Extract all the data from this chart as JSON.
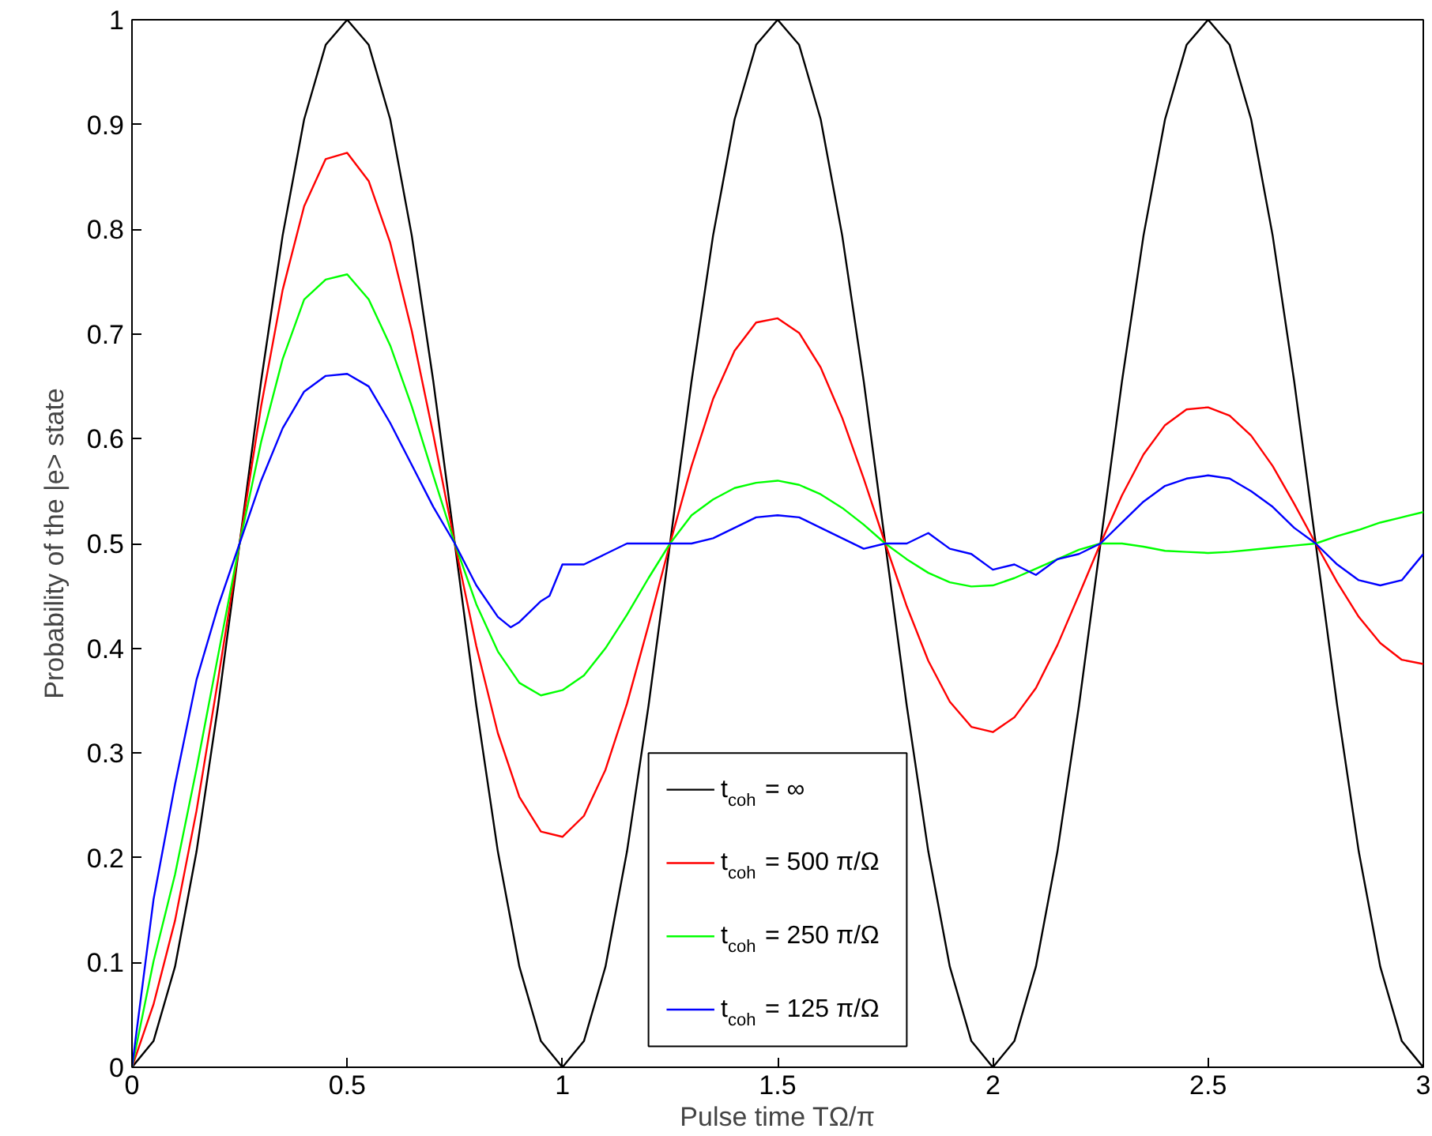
{
  "chart_data": {
    "type": "line",
    "xlabel": "Pulse time TΩ/π",
    "ylabel": "Probability of the |e> state",
    "xlim": [
      0,
      3
    ],
    "ylim": [
      0,
      1
    ],
    "xticks": [
      0,
      0.5,
      1,
      1.5,
      2,
      2.5,
      3
    ],
    "yticks": [
      0,
      0.1,
      0.2,
      0.3,
      0.4,
      0.5,
      0.6,
      0.7,
      0.8,
      0.9,
      1
    ],
    "grid": false,
    "legend": "bottom",
    "marker": "none",
    "line_style": "solid",
    "x": [
      0,
      0.05,
      0.1,
      0.15,
      0.2,
      0.25,
      0.3,
      0.35,
      0.4,
      0.45,
      0.5,
      0.55,
      0.6,
      0.65,
      0.7,
      0.75,
      0.8,
      0.85,
      0.9,
      0.95,
      1,
      1.05,
      1.1,
      1.15,
      1.2,
      1.25,
      1.3,
      1.35,
      1.4,
      1.45,
      1.5,
      1.55,
      1.6,
      1.65,
      1.7,
      1.75,
      1.8,
      1.85,
      1.9,
      1.95,
      2,
      2.05,
      2.1,
      2.15,
      2.2,
      2.25,
      2.3,
      2.35,
      2.4,
      2.45,
      2.5,
      2.55,
      2.6,
      2.65,
      2.7,
      2.75,
      2.8,
      2.85,
      2.9,
      2.95,
      3
    ],
    "series": [
      {
        "name": "t$_{coh}$ = ∞",
        "color": "#000000",
        "values": [
          0,
          0.025,
          0.096,
          0.206,
          0.345,
          0.5,
          0.655,
          0.794,
          0.905,
          0.976,
          1,
          0.976,
          0.905,
          0.794,
          0.655,
          0.5,
          0.345,
          0.206,
          0.096,
          0.025,
          0,
          0.025,
          0.096,
          0.206,
          0.345,
          0.5,
          0.655,
          0.794,
          0.905,
          0.976,
          1,
          0.976,
          0.905,
          0.794,
          0.655,
          0.5,
          0.345,
          0.206,
          0.096,
          0.025,
          0,
          0.025,
          0.096,
          0.206,
          0.345,
          0.5,
          0.655,
          0.794,
          0.905,
          0.976,
          1,
          0.976,
          0.905,
          0.794,
          0.655,
          0.5,
          0.345,
          0.206,
          0.096,
          0.025,
          0
        ]
      },
      {
        "name": "t$_{coh}$ = 500 π/Ω",
        "color": "#ff0000",
        "values": [
          0,
          0.06,
          0.14,
          0.245,
          0.37,
          0.5,
          0.631,
          0.742,
          0.822,
          0.867,
          0.873,
          0.846,
          0.787,
          0.703,
          0.604,
          0.5,
          0.402,
          0.319,
          0.258,
          0.225,
          0.22,
          0.24,
          0.284,
          0.347,
          0.422,
          0.5,
          0.574,
          0.638,
          0.684,
          0.711,
          0.715,
          0.701,
          0.668,
          0.62,
          0.562,
          0.5,
          0.44,
          0.388,
          0.349,
          0.325,
          0.32,
          0.334,
          0.362,
          0.403,
          0.451,
          0.5,
          0.546,
          0.585,
          0.613,
          0.628,
          0.63,
          0.622,
          0.603,
          0.574,
          0.538,
          0.5,
          0.463,
          0.43,
          0.405,
          0.389,
          0.385
        ]
      },
      {
        "name": "t$_{coh}$ = 250 π/Ω",
        "color": "#00ff00",
        "values": [
          0,
          0.101,
          0.184,
          0.285,
          0.393,
          0.5,
          0.597,
          0.676,
          0.733,
          0.752,
          0.757,
          0.733,
          0.689,
          0.631,
          0.565,
          0.5,
          0.442,
          0.397,
          0.367,
          0.355,
          0.36,
          0.374,
          0.4,
          0.432,
          0.467,
          0.5,
          0.527,
          0.542,
          0.553,
          0.558,
          0.56,
          0.556,
          0.547,
          0.534,
          0.518,
          0.5,
          0.485,
          0.472,
          0.463,
          0.459,
          0.46,
          0.467,
          0.476,
          0.485,
          0.494,
          0.5,
          0.5,
          0.497,
          0.493,
          0.492,
          0.491,
          0.492,
          0.494,
          0.496,
          0.498,
          0.5,
          0.507,
          0.513,
          0.52,
          0.525,
          0.53
        ]
      },
      {
        "name": "t$_{coh}$ = 125 π/Ω",
        "color": "#0000ff",
        "x": [
          0,
          0.05,
          0.1,
          0.15,
          0.2,
          0.25,
          0.3,
          0.35,
          0.4,
          0.45,
          0.5,
          0.55,
          0.6,
          0.65,
          0.7,
          0.75,
          0.8,
          0.85,
          0.88,
          0.9,
          0.95,
          0.97,
          1,
          1.05,
          1.1,
          1.15,
          1.2,
          1.25,
          1.3,
          1.35,
          1.4,
          1.45,
          1.5,
          1.55,
          1.6,
          1.65,
          1.7,
          1.75,
          1.8,
          1.85,
          1.9,
          1.95,
          2,
          2.05,
          2.1,
          2.15,
          2.2,
          2.25,
          2.3,
          2.35,
          2.4,
          2.45,
          2.5,
          2.55,
          2.6,
          2.65,
          2.7,
          2.75,
          2.8,
          2.85,
          2.9,
          2.95,
          3
        ],
        "values": [
          0,
          0.16,
          0.27,
          0.37,
          0.44,
          0.5,
          0.56,
          0.61,
          0.645,
          0.66,
          0.662,
          0.65,
          0.615,
          0.575,
          0.535,
          0.5,
          0.46,
          0.43,
          0.42,
          0.425,
          0.445,
          0.45,
          0.48,
          0.48,
          0.49,
          0.5,
          0.5,
          0.5,
          0.5,
          0.505,
          0.515,
          0.525,
          0.527,
          0.525,
          0.515,
          0.505,
          0.495,
          0.5,
          0.5,
          0.51,
          0.495,
          0.49,
          0.475,
          0.48,
          0.47,
          0.485,
          0.49,
          0.5,
          0.52,
          0.54,
          0.555,
          0.562,
          0.565,
          0.562,
          0.55,
          0.535,
          0.515,
          0.5,
          0.48,
          0.465,
          0.46,
          0.465,
          0.49
        ]
      }
    ]
  }
}
